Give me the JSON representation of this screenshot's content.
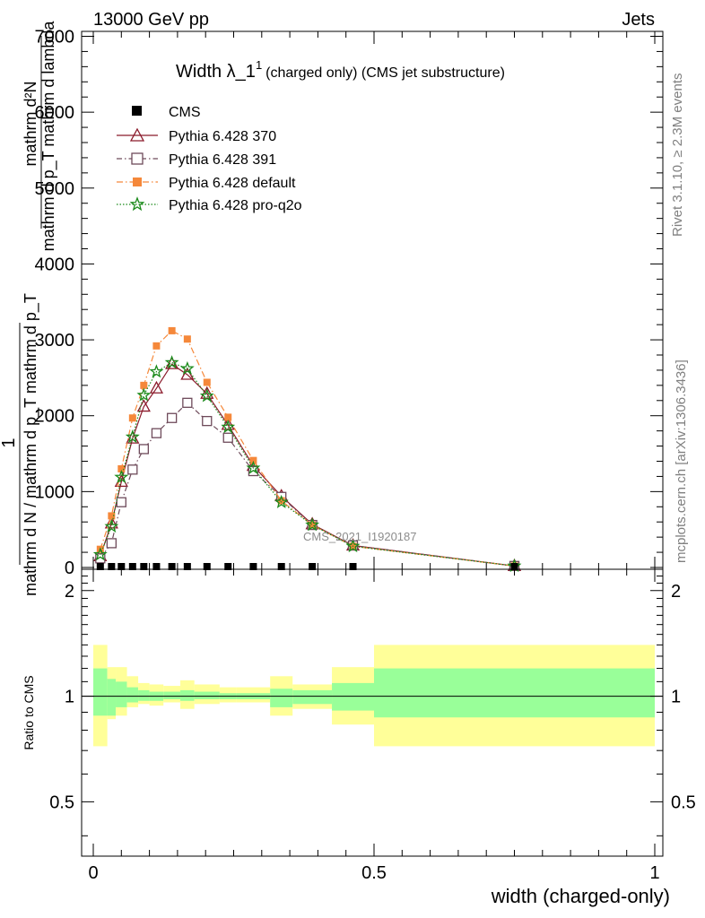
{
  "header": {
    "energy_label": "13000 GeV pp",
    "category_label": "Jets"
  },
  "side_labels": {
    "rivet": "Rivet 3.1.10, ≥ 2.3M events",
    "mcplots": "mcplots.cern.ch [arXiv:1306.3436]"
  },
  "watermark": "CMS_2021_I1920187",
  "title": {
    "main": "Width λ_1",
    "superscript": "1",
    "sub": "(charged only) (CMS jet substructure)"
  },
  "legend": {
    "cms": "CMS",
    "p370": "Pythia 6.428 370",
    "p391": "Pythia 6.428 391",
    "pdefault": "Pythia 6.428 default",
    "pq2o": "Pythia 6.428 pro-q2o"
  },
  "axes": {
    "ylabel_top_num": "mathrm d²N",
    "ylabel_top_den": "mathrm d p_T mathrm d lambda",
    "ylabel_main_num": "1",
    "ylabel_main_den": "mathrm d N / mathrm d p_T mathrm d p_T",
    "ylabel_ratio": "Ratio to CMS",
    "xlabel": "width (charged-only)"
  },
  "colors": {
    "p370": "#8b1a2b",
    "p391": "#6e4a5a",
    "pdefault": "#f5883a",
    "pq2o": "#1a8a1a",
    "band_outer": "#ffff99",
    "band_inner": "#99ff99"
  },
  "chart_data": {
    "type": "line",
    "xlim": [
      0,
      1
    ],
    "ylim": [
      0,
      7000
    ],
    "ratio_ylim": [
      0.35,
      2.3
    ],
    "x_ticks": [
      0,
      0.5,
      1
    ],
    "x_tick_labels": [
      "0",
      "0.5",
      "1"
    ],
    "y_ticks": [
      0,
      1000,
      2000,
      3000,
      4000,
      5000,
      6000,
      7000
    ],
    "y_tick_labels": [
      "0",
      "1000",
      "2000",
      "3000",
      "4000",
      "5000",
      "6000",
      "7000"
    ],
    "ratio_y_ticks": [
      0.5,
      1,
      2
    ],
    "ratio_y_tick_labels": [
      "0.5",
      "1",
      "2"
    ],
    "x": [
      0.0125,
      0.0325,
      0.05,
      0.07,
      0.09,
      0.1125,
      0.14,
      0.1675,
      0.2025,
      0.24,
      0.285,
      0.335,
      0.39,
      0.4625,
      0.75
    ],
    "series": [
      {
        "name": "CMS",
        "values": [
          0,
          0,
          0,
          0,
          0,
          0,
          0,
          0,
          0,
          0,
          0,
          0,
          0,
          0,
          0
        ]
      },
      {
        "name": "Pythia 6.428 370",
        "values": [
          150,
          580,
          1130,
          1700,
          2120,
          2360,
          2680,
          2540,
          2290,
          1880,
          1340,
          940,
          570,
          290,
          20
        ]
      },
      {
        "name": "Pythia 6.428 391",
        "values": [
          120,
          320,
          860,
          1290,
          1560,
          1770,
          1970,
          2170,
          1930,
          1710,
          1270,
          930,
          560,
          290,
          20
        ]
      },
      {
        "name": "Pythia 6.428 default",
        "values": [
          240,
          680,
          1300,
          1970,
          2400,
          2920,
          3120,
          3010,
          2440,
          1980,
          1410,
          880,
          560,
          280,
          20
        ]
      },
      {
        "name": "Pythia 6.428 pro-q2o",
        "values": [
          170,
          540,
          1190,
          1720,
          2270,
          2580,
          2700,
          2620,
          2260,
          1850,
          1310,
          860,
          560,
          280,
          20
        ]
      }
    ],
    "ratio_bands": [
      {
        "x0": 0.0,
        "x1": 0.025,
        "inner": [
          0.88,
          1.2
        ],
        "outer": [
          0.72,
          1.4
        ]
      },
      {
        "x0": 0.025,
        "x1": 0.04,
        "inner": [
          0.88,
          1.12
        ],
        "outer": [
          0.86,
          1.21
        ]
      },
      {
        "x0": 0.04,
        "x1": 0.06,
        "inner": [
          0.93,
          1.1
        ],
        "outer": [
          0.88,
          1.21
        ]
      },
      {
        "x0": 0.06,
        "x1": 0.08,
        "inner": [
          0.96,
          1.06
        ],
        "outer": [
          0.93,
          1.14
        ]
      },
      {
        "x0": 0.08,
        "x1": 0.1,
        "inner": [
          0.97,
          1.04
        ],
        "outer": [
          0.95,
          1.09
        ]
      },
      {
        "x0": 0.1,
        "x1": 0.125,
        "inner": [
          0.97,
          1.03
        ],
        "outer": [
          0.94,
          1.08
        ]
      },
      {
        "x0": 0.125,
        "x1": 0.155,
        "inner": [
          0.98,
          1.03
        ],
        "outer": [
          0.96,
          1.07
        ]
      },
      {
        "x0": 0.155,
        "x1": 0.18,
        "inner": [
          0.97,
          1.04
        ],
        "outer": [
          0.92,
          1.11
        ]
      },
      {
        "x0": 0.18,
        "x1": 0.225,
        "inner": [
          0.98,
          1.03
        ],
        "outer": [
          0.95,
          1.08
        ]
      },
      {
        "x0": 0.225,
        "x1": 0.255,
        "inner": [
          0.98,
          1.02
        ],
        "outer": [
          0.96,
          1.06
        ]
      },
      {
        "x0": 0.255,
        "x1": 0.315,
        "inner": [
          0.98,
          1.02
        ],
        "outer": [
          0.96,
          1.06
        ]
      },
      {
        "x0": 0.315,
        "x1": 0.355,
        "inner": [
          0.93,
          1.05
        ],
        "outer": [
          0.88,
          1.14
        ]
      },
      {
        "x0": 0.355,
        "x1": 0.425,
        "inner": [
          0.95,
          1.04
        ],
        "outer": [
          0.92,
          1.08
        ]
      },
      {
        "x0": 0.425,
        "x1": 0.5,
        "inner": [
          0.91,
          1.09
        ],
        "outer": [
          0.83,
          1.21
        ]
      },
      {
        "x0": 0.5,
        "x1": 1.0,
        "inner": [
          0.87,
          1.2
        ],
        "outer": [
          0.72,
          1.4
        ]
      }
    ]
  }
}
